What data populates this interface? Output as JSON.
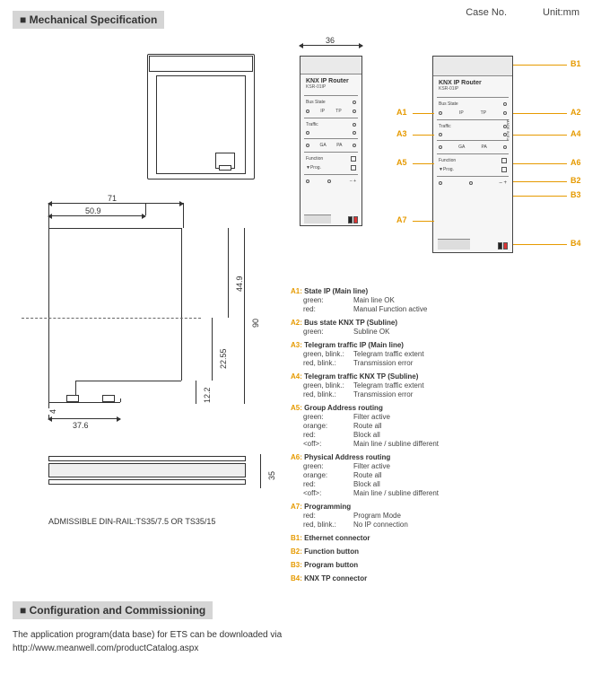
{
  "header": {
    "mech_spec": "Mechanical Specification",
    "case_no": "Case No.",
    "unit": "Unit:mm",
    "config": "Configuration and Commissioning",
    "config_text": "The application program(data base) for ETS can be downloaded via",
    "config_url": "http://www.meanwell.com/productCatalog.aspx"
  },
  "dims": {
    "d71": "71",
    "d50_9": "50.9",
    "d37_6": "37.6",
    "d90": "90",
    "d44_9": "44.9",
    "d22_55": "22.55",
    "d12_2": "12.2",
    "d4": "4",
    "d36": "36",
    "d35": "35"
  },
  "rail_note": "ADMISSIBLE DIN-RAIL:TS35/7.5 OR TS35/15",
  "device": {
    "title": "KNX IP Router",
    "model": "KSR-01IP",
    "rows": {
      "bus_state": "Bus State",
      "ip": "IP",
      "tp": "TP",
      "traffic": "Traffic",
      "ga": "GA",
      "pa": "PA",
      "function": "Function",
      "prog": "▼Prog.",
      "made": "MADE IN EU"
    }
  },
  "callouts": {
    "A1": "A1",
    "A2": "A2",
    "A3": "A3",
    "A4": "A4",
    "A5": "A5",
    "A6": "A6",
    "A7": "A7",
    "B1": "B1",
    "B2": "B2",
    "B3": "B3",
    "B4": "B4"
  },
  "legend": [
    {
      "code": "A1",
      "title": "State IP (Main line)",
      "rows": [
        {
          "k": "green:",
          "v": "Main line OK"
        },
        {
          "k": "red:",
          "v": "Manual Function active"
        }
      ]
    },
    {
      "code": "A2",
      "title": "Bus state KNX TP (Subline)",
      "rows": [
        {
          "k": "green:",
          "v": "Subline OK"
        }
      ]
    },
    {
      "code": "A3",
      "title": "Telegram traffic IP (Main line)",
      "rows": [
        {
          "k": "green, blink.:",
          "v": "Telegram traffic extent"
        },
        {
          "k": "red, blink.:",
          "v": "Transmission error"
        }
      ]
    },
    {
      "code": "A4",
      "title": "Telegram traffic KNX TP (Subline)",
      "rows": [
        {
          "k": "green, blink.:",
          "v": "Telegram traffic extent"
        },
        {
          "k": "red, blink.:",
          "v": "Transmission error"
        }
      ]
    },
    {
      "code": "A5",
      "title": "Group Address routing",
      "rows": [
        {
          "k": "green:",
          "v": "Filter active"
        },
        {
          "k": "orange:",
          "v": "Route all"
        },
        {
          "k": "red:",
          "v": "Block all"
        },
        {
          "k": "<off>:",
          "v": "Main line / subline different"
        }
      ]
    },
    {
      "code": "A6",
      "title": "Physical Address routing",
      "rows": [
        {
          "k": "green:",
          "v": "Filter active"
        },
        {
          "k": "orange:",
          "v": "Route all"
        },
        {
          "k": "red:",
          "v": "Block all"
        },
        {
          "k": "<off>:",
          "v": "Main line / subline different"
        }
      ]
    },
    {
      "code": "A7",
      "title": "Programming",
      "rows": [
        {
          "k": "red:",
          "v": "Program Mode"
        },
        {
          "k": "red, blink.:",
          "v": "No IP connection"
        }
      ]
    },
    {
      "code": "B1",
      "title": "Ethernet connector",
      "rows": []
    },
    {
      "code": "B2",
      "title": "Function button",
      "rows": []
    },
    {
      "code": "B3",
      "title": "Program button",
      "rows": []
    },
    {
      "code": "B4",
      "title": "KNX TP connector",
      "rows": []
    }
  ]
}
